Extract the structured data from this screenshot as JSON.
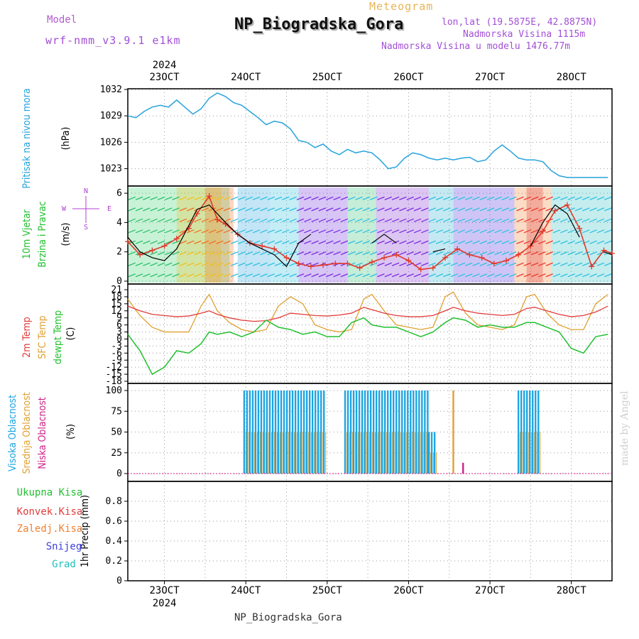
{
  "header": {
    "model_label": "Model",
    "model_name": "wrf-nmm_v3.9.1 e1km",
    "meteogram_label": "Meteogram",
    "station": "NP_Biogradska_Gora",
    "lonlat": "lon,lat (19.5875E, 42.8875N)",
    "elevation": "Nadmorska Visina 1115m",
    "elevation_model": "Nadmorska Visina u modelu 1476.77m"
  },
  "footer": "NP_Biogradska_Gora",
  "watermark": "made by Angel",
  "time_axis": {
    "year": "2024",
    "labels": [
      "23OCT",
      "24OCT",
      "25OCT",
      "26OCT",
      "27OCT",
      "28OCT"
    ],
    "day_values": [
      23,
      24,
      25,
      26,
      27,
      28
    ],
    "start_day": 22.55,
    "end_day": 28.5
  },
  "colors": {
    "pressure": "#27a3dc",
    "wind_speed": "#e0392b",
    "temp2m": "#e23b3b",
    "sfc_temp": "#e0a030",
    "dewpt": "#22c030",
    "cloud_high": "#1ea5e0",
    "cloud_mid": "#e0a030",
    "cloud_low": "#d0208a",
    "precip_total": "#22c030",
    "precip_conv": "#e23b3b",
    "precip_frozen": "#f08030",
    "precip_snow": "#4040e0",
    "precip_grad": "#20c0c0"
  },
  "chart_data": [
    {
      "type": "line",
      "panel": "pressure",
      "ylabel_left": "Pritisak na nivou mora",
      "ylabel_right": "(hPa)",
      "ylim": [
        1022,
        1032
      ],
      "yticks": [
        1023,
        1026,
        1029,
        1032
      ],
      "x": [
        22.55,
        22.65,
        22.75,
        22.85,
        22.95,
        23.05,
        23.15,
        23.25,
        23.35,
        23.45,
        23.55,
        23.65,
        23.75,
        23.85,
        23.95,
        24.05,
        24.15,
        24.25,
        24.35,
        24.45,
        24.55,
        24.65,
        24.75,
        24.85,
        24.95,
        25.05,
        25.15,
        25.25,
        25.35,
        25.45,
        25.55,
        25.65,
        25.75,
        25.85,
        25.95,
        26.05,
        26.15,
        26.25,
        26.35,
        26.45,
        26.55,
        26.65,
        26.75,
        26.85,
        26.95,
        27.05,
        27.15,
        27.25,
        27.35,
        27.45,
        27.55,
        27.65,
        27.75,
        27.85,
        27.95,
        28.05,
        28.15,
        28.25,
        28.35,
        28.45
      ],
      "series": [
        {
          "values": [
            1029.0,
            1028.8,
            1029.5,
            1030.0,
            1030.2,
            1030.0,
            1030.8,
            1030.0,
            1029.2,
            1029.8,
            1031.0,
            1031.6,
            1031.2,
            1030.5,
            1030.2,
            1029.5,
            1028.8,
            1028.0,
            1028.4,
            1028.2,
            1027.5,
            1026.2,
            1026.0,
            1025.4,
            1025.8,
            1025.0,
            1024.6,
            1025.2,
            1024.8,
            1025.0,
            1024.8,
            1024.0,
            1023.0,
            1023.2,
            1024.2,
            1024.8,
            1024.6,
            1024.2,
            1024.0,
            1024.2,
            1024.0,
            1024.2,
            1024.3,
            1023.8,
            1024.0,
            1025.0,
            1025.7,
            1025.0,
            1024.2,
            1024.0,
            1024.0,
            1023.8,
            1022.8,
            1022.2,
            1022.0,
            1022.0,
            1022.0,
            1022.0,
            1022.0,
            1022.0
          ]
        }
      ]
    },
    {
      "type": "line",
      "panel": "wind",
      "ylabel_left": "10m Vjetar Brzina i Pravac",
      "ylabel_right": "(m/s)",
      "compass_labels": {
        "n": "N",
        "w": "W",
        "e": "E",
        "s": "S"
      },
      "ylim": [
        0,
        6.2
      ],
      "yticks": [
        0,
        2,
        4,
        6
      ],
      "x": [
        22.55,
        22.7,
        22.85,
        23.0,
        23.15,
        23.3,
        23.4,
        23.55,
        23.65,
        23.75,
        23.9,
        24.05,
        24.2,
        24.35,
        24.5,
        24.65,
        24.8,
        24.95,
        25.1,
        25.25,
        25.4,
        25.55,
        25.7,
        25.85,
        26.0,
        26.15,
        26.3,
        26.45,
        26.6,
        26.75,
        26.9,
        27.05,
        27.2,
        27.35,
        27.5,
        27.65,
        27.8,
        27.95,
        28.1,
        28.25,
        28.4,
        28.5
      ],
      "series": [
        {
          "name": "speed",
          "values": [
            2.7,
            1.8,
            2.1,
            2.4,
            2.9,
            3.6,
            4.6,
            5.8,
            4.2,
            3.9,
            3.2,
            2.6,
            2.4,
            2.2,
            1.6,
            1.2,
            1.0,
            1.1,
            1.2,
            1.2,
            0.9,
            1.3,
            1.6,
            1.8,
            1.4,
            0.8,
            0.9,
            1.6,
            2.2,
            1.8,
            1.6,
            1.2,
            1.4,
            1.8,
            2.4,
            3.4,
            4.8,
            5.2,
            3.6,
            1.0,
            2.1,
            1.9
          ]
        },
        {
          "name": "gust",
          "values": [
            3.0,
            2.0,
            1.6,
            1.4,
            2.2,
            3.8,
            4.9,
            5.2,
            4.6,
            4.0,
            3.2,
            2.6,
            2.2,
            1.8,
            1.0,
            2.6,
            3.2,
            0.0,
            0.0,
            0.0,
            0.0,
            2.6,
            3.2,
            2.6,
            0.0,
            0.0,
            2.0,
            2.2,
            0.0,
            2.4,
            0.0,
            0.0,
            0.0,
            0.0,
            2.4,
            4.0,
            5.2,
            4.6,
            3.0,
            0.0,
            2.0,
            1.8
          ]
        }
      ]
    },
    {
      "type": "line",
      "panel": "temperature",
      "ylabel_left_1": "2m Temp",
      "ylabel_left_2": "SFC Temp",
      "ylabel_left_3": "dewpt Temp",
      "ylabel_right": "(C)",
      "ylim": [
        -18,
        21
      ],
      "yticks": [
        -18,
        -15,
        -12,
        -9,
        -6,
        -3,
        0,
        3,
        6,
        9,
        12,
        15,
        18,
        21
      ],
      "x": [
        22.55,
        22.7,
        22.85,
        23.0,
        23.15,
        23.3,
        23.45,
        23.55,
        23.65,
        23.8,
        23.95,
        24.1,
        24.25,
        24.4,
        24.55,
        24.7,
        24.85,
        25.0,
        25.15,
        25.3,
        25.45,
        25.55,
        25.7,
        25.85,
        26.0,
        26.15,
        26.3,
        26.45,
        26.55,
        26.7,
        26.85,
        27.0,
        27.15,
        27.3,
        27.45,
        27.55,
        27.7,
        27.85,
        28.0,
        28.15,
        28.3,
        28.45
      ],
      "series": [
        {
          "name": "2m Temp",
          "values": [
            14,
            12,
            10.5,
            10,
            9.5,
            9.8,
            11,
            12,
            10.5,
            9,
            8,
            7.5,
            7.8,
            9,
            11,
            10.5,
            10,
            9.8,
            10.2,
            11,
            13.5,
            12.5,
            11,
            10,
            9.5,
            9.5,
            10,
            12,
            13.5,
            12,
            11,
            10.5,
            10,
            10.5,
            13,
            13.5,
            12,
            10.5,
            9.5,
            10,
            11.5,
            14
          ]
        },
        {
          "name": "SFC Temp",
          "values": [
            17,
            10,
            5,
            3,
            3,
            3,
            14,
            19,
            12,
            7,
            4,
            3,
            4,
            14,
            18,
            15,
            6,
            4,
            3,
            4,
            17,
            19,
            12,
            6,
            5,
            4,
            5,
            18,
            20,
            11,
            6,
            5,
            4,
            6,
            18,
            19,
            11,
            6,
            4,
            4,
            15,
            19
          ]
        },
        {
          "name": "dewpt Temp",
          "values": [
            2,
            -5,
            -15,
            -12,
            -5,
            -6,
            -2,
            3,
            2,
            3,
            1,
            3,
            8,
            5,
            4,
            2,
            3,
            1,
            1,
            7,
            9,
            6,
            5,
            5,
            3,
            1,
            3,
            7,
            9,
            8,
            5,
            6,
            5,
            5,
            7,
            7,
            5,
            3,
            -4,
            -6,
            1,
            2
          ]
        }
      ]
    },
    {
      "type": "bar",
      "panel": "clouds",
      "ylabel_left_1": "Visoka Oblacnost",
      "ylabel_left_2": "Srednja Oblacnost",
      "ylabel_left_3": "Niska Oblacnost",
      "ylabel_right": "(%)",
      "ylim": [
        0,
        100
      ],
      "yticks": [
        0,
        25,
        50,
        75,
        100
      ],
      "segments": [
        {
          "name": "high",
          "from": 23.98,
          "to": 24.98,
          "value": 100
        },
        {
          "name": "high",
          "from": 25.22,
          "to": 26.25,
          "value": 100
        },
        {
          "name": "high",
          "from": 26.25,
          "to": 26.35,
          "value": 50
        },
        {
          "name": "mid",
          "from": 26.55,
          "to": 26.58,
          "value": 100
        },
        {
          "name": "low",
          "from": 26.67,
          "to": 26.69,
          "value": 13
        },
        {
          "name": "high",
          "from": 27.35,
          "to": 27.6,
          "value": 100
        }
      ]
    },
    {
      "type": "line",
      "panel": "precip",
      "legend": [
        "Ukupna Kisa",
        "Konvek.Kisa",
        "Zaledj.Kisa",
        "Snijeg",
        "Grad"
      ],
      "ylabel_right": "1hr Precip (mm)",
      "ylim": [
        0,
        1.0
      ],
      "yticks": [
        0,
        0.2,
        0.4,
        0.6,
        0.8
      ],
      "ytick_labels": [
        "0",
        "0.2",
        "0.4",
        "0.6",
        "0.8"
      ],
      "series": [
        {
          "name": "Ukupna Kisa",
          "values": [
            0
          ]
        }
      ]
    }
  ]
}
